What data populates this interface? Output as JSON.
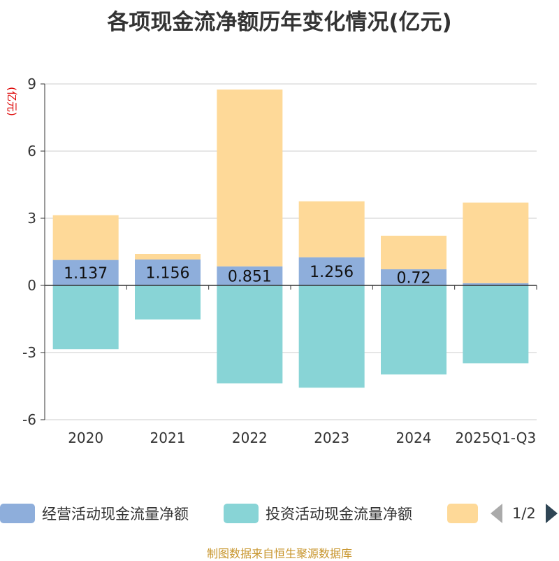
{
  "title": "各项现金流净额历年变化情况(亿元)",
  "source": "制图数据来自恒生聚源数据库",
  "chart_data": {
    "type": "bar",
    "stacked": true,
    "title": "各项现金流净额历年变化情况(亿元)",
    "ylabel": "(亿元)",
    "ylim": [
      -6,
      9
    ],
    "yticks": [
      -6,
      -3,
      0,
      3,
      6,
      9
    ],
    "grid": true,
    "categories": [
      "2020",
      "2021",
      "2022",
      "2023",
      "2024",
      "2025Q1-Q3"
    ],
    "series": [
      {
        "name": "经营活动现金流量净额",
        "color": "#8eaedb",
        "values": [
          1.137,
          1.156,
          0.851,
          1.256,
          0.72,
          0.1
        ],
        "labels": [
          "1.137",
          "1.156",
          "0.851",
          "1.256",
          "0.72",
          ""
        ]
      },
      {
        "name": "投资活动现金流量净额",
        "color": "#88d4d6",
        "values": [
          -2.85,
          -1.52,
          -4.38,
          -4.57,
          -3.98,
          -3.48
        ]
      },
      {
        "name": "",
        "color": "#fed998",
        "values": [
          2.0,
          0.25,
          7.9,
          2.5,
          1.5,
          3.6
        ]
      }
    ],
    "legend_position": "bottom"
  },
  "legend": {
    "items": [
      {
        "label": "经营活动现金流量净额",
        "color": "#8eaedb"
      },
      {
        "label": "投资活动现金流量净额",
        "color": "#88d4d6"
      },
      {
        "label": "",
        "color": "#fed998"
      }
    ],
    "page": "1/2"
  }
}
